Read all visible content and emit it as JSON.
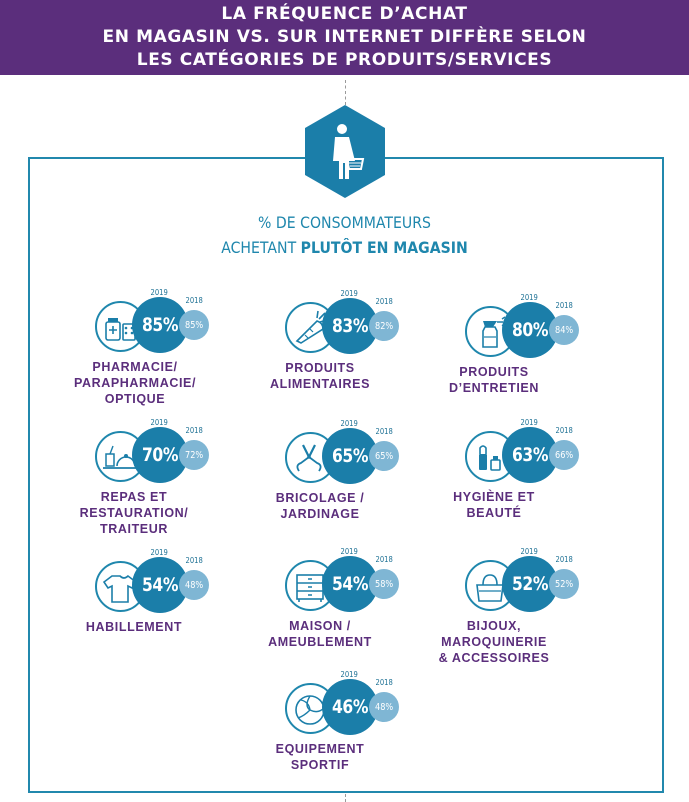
{
  "header": {
    "line1": "LA FRÉQUENCE D’ACHAT",
    "line2": "EN MAGASIN VS. SUR INTERNET DIFFÈRE SELON",
    "line3": "LES CATÉGORIES DE PRODUITS/SERVICES"
  },
  "subtitle": {
    "line1": "% DE CONSOMMATEURS",
    "line2_prefix": "ACHETANT ",
    "line2_bold": "PLUTÔT EN MAGASIN"
  },
  "colors": {
    "header": "#5b2e7c",
    "accent": "#1b7ea9",
    "light": "#7fb6d4",
    "label": "#5b2e7c"
  },
  "hero_icon": "shopper-with-basket-icon",
  "chart_data": {
    "type": "bubble-comparison",
    "title": "% DE CONSOMMATEURS ACHETANT PLUTÔT EN MAGASIN",
    "unit": "%",
    "series_names": [
      "2019",
      "2018"
    ],
    "categories": [
      {
        "name_lines": [
          "PHARMACIE/",
          "PARAPHARMACIE/",
          "OPTIQUE"
        ],
        "v2019": 85,
        "v2018": 85,
        "icon": "pharmacy-icon"
      },
      {
        "name_lines": [
          "PRODUITS",
          "ALIMENTAIRES"
        ],
        "v2019": 83,
        "v2018": 82,
        "icon": "carrot-icon"
      },
      {
        "name_lines": [
          "PRODUITS",
          "D’ENTRETIEN"
        ],
        "v2019": 80,
        "v2018": 84,
        "icon": "spray-bottle-icon"
      },
      {
        "name_lines": [
          "REPAS ET",
          "RESTAURATION/",
          "TRAITEUR"
        ],
        "v2019": 70,
        "v2018": 72,
        "icon": "meal-tray-icon"
      },
      {
        "name_lines": [
          "BRICOLAGE /",
          "JARDINAGE"
        ],
        "v2019": 65,
        "v2018": 65,
        "icon": "pruning-shears-icon"
      },
      {
        "name_lines": [
          "HYGIÈNE ET",
          "BEAUTÉ"
        ],
        "v2019": 63,
        "v2018": 66,
        "icon": "cosmetics-icon"
      },
      {
        "name_lines": [
          "HABILLEMENT"
        ],
        "v2019": 54,
        "v2018": 48,
        "icon": "tshirt-icon"
      },
      {
        "name_lines": [
          "MAISON /",
          "AMEUBLEMENT"
        ],
        "v2019": 54,
        "v2018": 58,
        "icon": "dresser-icon"
      },
      {
        "name_lines": [
          "BIJOUX,",
          "MAROQUINERIE",
          "& ACCESSOIRES"
        ],
        "v2019": 52,
        "v2018": 52,
        "icon": "handbag-icon"
      },
      {
        "name_lines": [
          "EQUIPEMENT",
          "SPORTIF"
        ],
        "v2019": 46,
        "v2018": 48,
        "icon": "volleyball-icon"
      }
    ]
  }
}
